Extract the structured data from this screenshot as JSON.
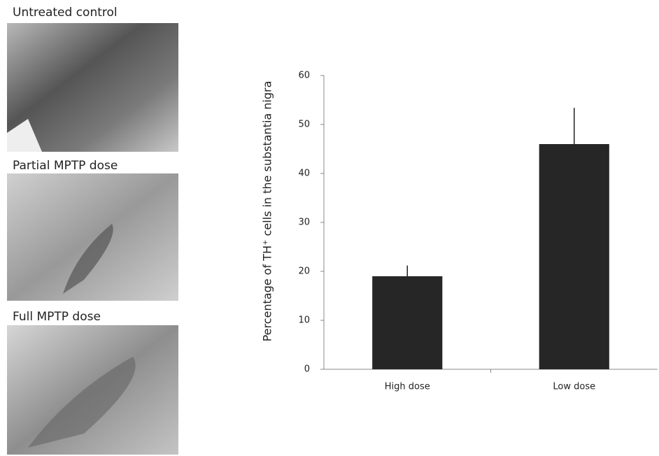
{
  "panels": [
    {
      "label": "Untreated control"
    },
    {
      "label": "Partial MPTP dose"
    },
    {
      "label": "Full MPTP dose"
    }
  ],
  "chart_data": {
    "type": "bar",
    "y_label": "Percentage of TH⁺ cells in the substantia nigra",
    "categories": [
      "High dose",
      "Low dose"
    ],
    "series": [
      {
        "color": "#262626",
        "values": [
          19,
          46
        ],
        "errors": [
          2.2,
          7.4
        ]
      }
    ],
    "ylim": [
      0,
      60
    ],
    "yticks": [
      0,
      10,
      20,
      30,
      40,
      50,
      60
    ],
    "grid": false
  }
}
